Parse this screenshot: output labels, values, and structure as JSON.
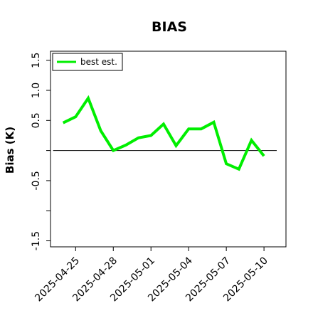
{
  "chart_data": {
    "type": "line",
    "title": "BIAS",
    "xlabel": "",
    "ylabel": "Bias (K)",
    "ylim": [
      -1.6,
      1.65
    ],
    "yticks": [
      -1.5,
      -1.0,
      -0.5,
      0.0,
      0.5,
      1.0,
      1.5
    ],
    "ytick_labels": [
      "-1.5",
      "",
      "-0.5",
      "",
      "0.5",
      "1.0",
      "1.5"
    ],
    "x_dates": [
      "2025-04-24",
      "2025-04-24T12",
      "2025-04-25",
      "2025-04-25T12",
      "2025-04-26",
      "2025-04-26T12",
      "2025-04-27",
      "2025-04-27T12",
      "2025-04-28",
      "2025-04-28T12",
      "2025-04-29",
      "2025-04-29T12",
      "2025-04-30",
      "2025-04-30T12",
      "2025-05-01",
      "2025-05-01T12",
      "2025-05-02",
      "2025-05-02T12",
      "2025-05-03",
      "2025-05-03T12",
      "2025-05-04",
      "2025-05-04T12",
      "2025-05-05",
      "2025-05-05T12",
      "2025-05-06",
      "2025-05-06T12",
      "2025-05-07",
      "2025-05-07T12",
      "2025-05-08",
      "2025-05-08T12",
      "2025-05-09",
      "2025-05-09T12",
      "2025-05-10"
    ],
    "xlim": [
      "2025-04-23",
      "2025-05-11T18"
    ],
    "xticks": [
      "2025-04-25",
      "2025-04-28",
      "2025-05-01",
      "2025-05-04",
      "2025-05-07",
      "2025-05-10"
    ],
    "series": [
      {
        "name": "best est.",
        "color": "#00ee00",
        "x": [
          "2025-04-24",
          "2025-04-25",
          "2025-04-26",
          "2025-04-27",
          "2025-04-28",
          "2025-04-29",
          "2025-04-30",
          "2025-05-01",
          "2025-05-02",
          "2025-05-03",
          "2025-05-04",
          "2025-05-05",
          "2025-05-06",
          "2025-05-07",
          "2025-05-08",
          "2025-05-09",
          "2025-05-10"
        ],
        "values": [
          0.46,
          0.56,
          0.87,
          0.33,
          0.0,
          0.09,
          0.21,
          0.25,
          0.44,
          0.08,
          0.36,
          0.36,
          0.47,
          -0.22,
          -0.31,
          0.17,
          -0.09
        ]
      }
    ],
    "reference_line": {
      "y": 0.0,
      "color": "#000000"
    },
    "legend": {
      "position": "top-left"
    },
    "grid": false
  }
}
